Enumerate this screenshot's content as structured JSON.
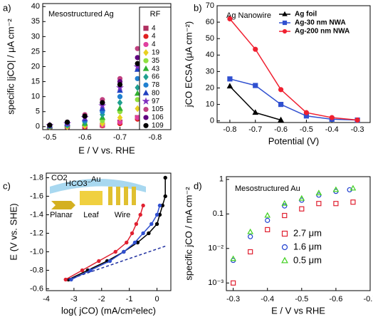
{
  "chart_data": [
    {
      "type": "line",
      "panel": "a)",
      "annotations": [
        "Mesostructured Ag"
      ],
      "x_label": "E / V vs. RHE",
      "y_label": "specific |jCO| / μA cm⁻²",
      "x": [
        -0.5,
        -0.55,
        -0.6,
        -0.65,
        -0.7,
        -0.75,
        -0.8
      ],
      "xlim": [
        -0.48,
        -0.845
      ],
      "xticks": [
        -0.5,
        -0.6,
        -0.7,
        -0.8
      ],
      "ylim": [
        -1,
        41
      ],
      "yticks": [
        0,
        5,
        10,
        15,
        20,
        25,
        30,
        35,
        40
      ],
      "legend": "right",
      "legend_title": "RF",
      "lines": false,
      "series": [
        {
          "name": "4",
          "color": "#b03060",
          "marker": "square",
          "values": [
            0,
            0,
            0,
            0.5,
            1.5,
            3,
            5.5
          ]
        },
        {
          "name": "4",
          "color": "#e02020",
          "marker": "circle",
          "values": [
            0,
            0,
            0,
            0.3,
            1,
            2.5,
            4.5
          ]
        },
        {
          "name": "4",
          "color": "#e040a0",
          "marker": "circle",
          "values": [
            0,
            0,
            0.2,
            0.5,
            1.5,
            3,
            6
          ]
        },
        {
          "name": "19",
          "color": "#e8d020",
          "marker": "diamond",
          "values": [
            0,
            0,
            0.3,
            1,
            3,
            6,
            13
          ]
        },
        {
          "name": "35",
          "color": "#90e040",
          "marker": "circle",
          "values": [
            0,
            0.3,
            0.8,
            2,
            5,
            9,
            15
          ]
        },
        {
          "name": "43",
          "color": "#30b030",
          "marker": "triangle",
          "values": [
            0,
            0.5,
            1,
            3,
            6,
            11,
            17
          ]
        },
        {
          "name": "66",
          "color": "#20a090",
          "marker": "diamond",
          "values": [
            0.2,
            0.6,
            1.5,
            4,
            8,
            13,
            20
          ]
        },
        {
          "name": "78",
          "color": "#2080d0",
          "marker": "circle",
          "values": [
            0.3,
            0.8,
            2,
            5,
            10,
            16,
            24
          ]
        },
        {
          "name": "80",
          "color": "#2040c0",
          "marker": "triangle",
          "values": [
            0.3,
            1,
            2.5,
            6,
            12,
            19,
            25
          ]
        },
        {
          "name": "97",
          "color": "#8030c0",
          "marker": "star",
          "values": [
            0.4,
            1,
            3,
            7,
            13,
            20,
            28
          ]
        },
        {
          "name": "105",
          "color": "#c04080",
          "marker": "circle",
          "values": [
            0.5,
            1.5,
            4,
            9,
            16,
            26,
            36
          ]
        },
        {
          "name": "106",
          "color": "#600080",
          "marker": "circle",
          "values": [
            0.5,
            1.5,
            3.5,
            8,
            15,
            23,
            30
          ]
        },
        {
          "name": "109",
          "color": "#000000",
          "marker": "circle",
          "values": [
            0.5,
            1.5,
            3.5,
            8,
            14,
            21,
            29
          ]
        }
      ]
    },
    {
      "type": "line",
      "panel": "b)",
      "annotations": [
        "Ag Nanowire"
      ],
      "x_label": "Potential (V)",
      "y_label": "jCO ECSA (μA cm⁻²)",
      "x": [
        -0.8,
        -0.7,
        -0.6,
        -0.5,
        -0.4,
        -0.3
      ],
      "xlim": [
        -0.85,
        -0.25
      ],
      "xticks": [
        -0.8,
        -0.7,
        -0.6,
        -0.5,
        -0.4,
        -0.3
      ],
      "ylim": [
        -1,
        70
      ],
      "yticks": [
        0,
        10,
        20,
        30,
        40,
        50,
        60,
        70
      ],
      "legend": "upper right",
      "lines": true,
      "series": [
        {
          "name": "Ag foil",
          "color": "#000000",
          "marker": "triangle",
          "values": [
            21,
            5,
            0.5,
            null,
            null,
            null
          ]
        },
        {
          "name": "Ag-30 nm NWA",
          "color": "#3050d0",
          "marker": "square",
          "values": [
            25.5,
            21.5,
            10,
            3,
            1,
            0.5
          ]
        },
        {
          "name": "Ag-200 nm NWA",
          "color": "#f02030",
          "marker": "circle",
          "values": [
            62,
            43.5,
            19,
            5,
            2,
            0.5
          ]
        }
      ]
    },
    {
      "type": "line",
      "panel": "c)",
      "annotations": [
        "CO2",
        "HCO3⁻",
        "Au",
        "Planar",
        "Leaf",
        "Wire"
      ],
      "x_label": "log( jCO) (mA/cm²elec)",
      "y_label": "E (V vs. SHE)",
      "xlim": [
        -4,
        0.5
      ],
      "xticks": [
        -4,
        -3,
        -2,
        -1,
        0
      ],
      "ylim": [
        -0.58,
        -1.85
      ],
      "yticks": [
        -0.6,
        -0.8,
        {
          "value": -1,
          "label": "-1.0"
        },
        -1.2,
        -1.4,
        -1.6,
        -1.8
      ],
      "lines": true,
      "series": [
        {
          "color": "#000000",
          "marker": "dot",
          "x": [
            -3.2,
            -2.5,
            -1.8,
            -1.2,
            -0.7,
            -0.3,
            0,
            0.1,
            0.2,
            0.3,
            0.3
          ],
          "values": [
            -0.7,
            -0.8,
            -0.9,
            -1.0,
            -1.1,
            -1.2,
            -1.3,
            -1.4,
            -1.5,
            -1.6,
            -1.8
          ]
        },
        {
          "color": "#e02030",
          "marker": "dot",
          "x": [
            -3.3,
            -2.7,
            -2.1,
            -1.5,
            -1.1,
            -0.9,
            -0.75,
            -0.6,
            -0.5
          ],
          "values": [
            -0.7,
            -0.8,
            -0.9,
            -1.0,
            -1.1,
            -1.2,
            -1.3,
            -1.4,
            -1.5
          ]
        },
        {
          "color": "#3050d0",
          "marker": "dot",
          "x": [
            -3.1,
            -2.4,
            -1.7,
            -1.2,
            -0.8,
            -0.5,
            -0.2,
            0,
            0.1
          ],
          "values": [
            -0.7,
            -0.8,
            -0.9,
            -1.0,
            -1.1,
            -1.2,
            -1.3,
            -1.4,
            -1.5
          ]
        },
        {
          "color": "#2030a0",
          "dashed": true,
          "x": [
            -3.2,
            0.3
          ],
          "values": [
            -0.7,
            -1.06
          ]
        }
      ]
    },
    {
      "type": "scatter",
      "panel": "d)",
      "annotations": [
        "Mesostructured Au"
      ],
      "x_label": "E / V vs RHE",
      "y_label": "specific jCO / mA cm⁻²",
      "xlim": [
        -0.28,
        -0.7
      ],
      "xticks": [
        -0.3,
        -0.4,
        -0.5,
        -0.6,
        -0.7
      ],
      "log_y": true,
      "ylim": [
        0.0006,
        1.2
      ],
      "yticks": [
        {
          "value": 0.001,
          "label": "10⁻³"
        },
        {
          "value": 0.01,
          "label": "10⁻²"
        },
        0.1,
        1
      ],
      "legend": "lower right",
      "filled": false,
      "series": [
        {
          "name": "2.7 μm",
          "color": "#e02030",
          "marker": "square",
          "x": [
            -0.3,
            -0.35,
            -0.4,
            -0.45,
            -0.5,
            -0.55,
            -0.6,
            -0.65
          ],
          "values": [
            0.001,
            0.008,
            0.035,
            0.09,
            0.14,
            0.2,
            0.2,
            0.22
          ]
        },
        {
          "name": "1.6 μm",
          "color": "#2040d0",
          "marker": "circle",
          "x": [
            -0.3,
            -0.35,
            -0.4,
            -0.45,
            -0.5,
            -0.55,
            -0.6,
            -0.64
          ],
          "values": [
            0.0045,
            0.022,
            0.065,
            0.17,
            0.25,
            0.35,
            0.45,
            0.5
          ]
        },
        {
          "name": "0.5 μm",
          "color": "#40d020",
          "marker": "triangle",
          "x": [
            -0.3,
            -0.35,
            -0.4,
            -0.45,
            -0.5,
            -0.55,
            -0.6,
            -0.65
          ],
          "values": [
            0.005,
            0.03,
            0.09,
            0.2,
            0.28,
            0.4,
            0.5,
            0.55
          ]
        }
      ]
    }
  ]
}
